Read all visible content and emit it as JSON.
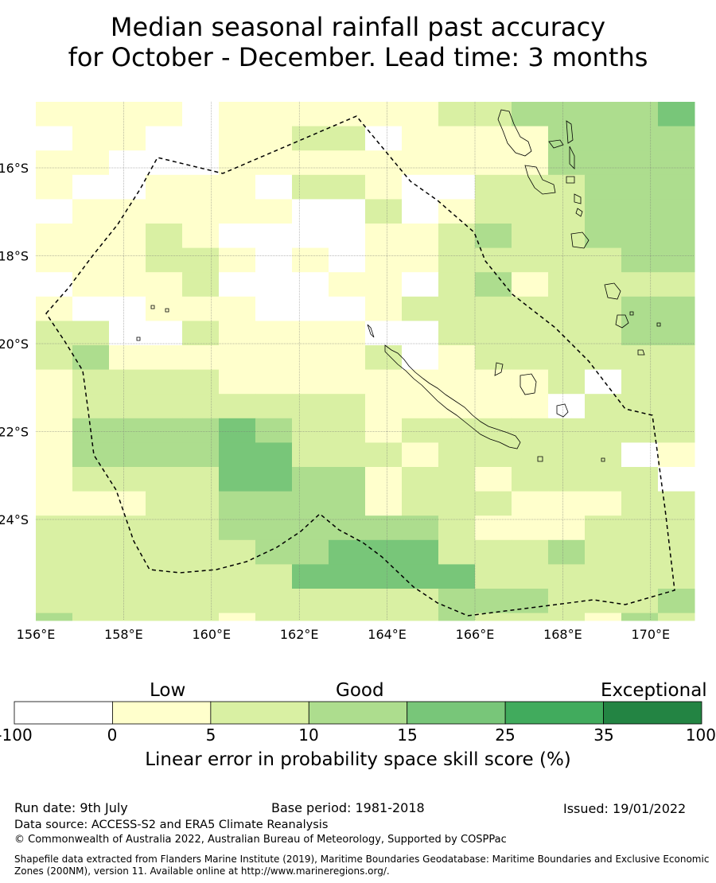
{
  "title_line1": "Median seasonal rainfall past accuracy",
  "title_line2": "for October - December. Lead time: 3 months",
  "map": {
    "lon_range": [
      156,
      171
    ],
    "lat_range": [
      -26.5,
      -14.5
    ],
    "grid_resolution_deg": 0.833,
    "lon_ticks": [
      {
        "value": 156,
        "label": "156°E"
      },
      {
        "value": 158,
        "label": "158°E"
      },
      {
        "value": 160,
        "label": "160°E"
      },
      {
        "value": 162,
        "label": "162°E"
      },
      {
        "value": 164,
        "label": "164°E"
      },
      {
        "value": 166,
        "label": "166°E"
      },
      {
        "value": 168,
        "label": "168°E"
      },
      {
        "value": 170,
        "label": "170°E"
      }
    ],
    "lat_ticks": [
      {
        "value": -16,
        "label": "16°S"
      },
      {
        "value": -18,
        "label": "18°S"
      },
      {
        "value": -20,
        "label": "20°S"
      },
      {
        "value": -22,
        "label": "22°S"
      },
      {
        "value": -24,
        "label": "24°S"
      }
    ],
    "skill_grid_category_rows_north_to_south": [
      "1111011111122333344552",
      "0110011220111133333330",
      "1100011111111133333333",
      "1001110221002223333332",
      "0111111002012223333332",
      "1112100001123223333332",
      "1112210101122222333332",
      "0111200011023122223332",
      "1001110001222222333333",
      "2200211110022222333333",
      "2311111112012222222333",
      "1222211111111120222233",
      "1222222221111102222222",
      "1333343221222222222232",
      "1333344222122222012222",
      "1222244331221222200220",
      "1112233331222111221101",
      "2222233333321112222221",
      "2222223344422232221112",
      "2222222444442222222111",
      "2222222222233322232222",
      "3222212222232221322232",
      "2222322221111112231222",
      "3222222221111111233231",
      "3222212121211111422222"
    ],
    "category_colors": [
      "#ffffff",
      "#ffffcc",
      "#d9f0a3",
      "#addd8e",
      "#78c679",
      "#41ab5d",
      "#238443"
    ]
  },
  "colorbar": {
    "words": [
      "Low",
      "Good",
      "Exceptional"
    ],
    "ticks": [
      "-100",
      "0",
      "5",
      "10",
      "15",
      "25",
      "35",
      "100"
    ],
    "colors": [
      "#ffffff",
      "#ffffcc",
      "#d9f0a3",
      "#addd8e",
      "#78c679",
      "#41ab5d",
      "#238443"
    ],
    "label": "Linear error in probability space skill score (%)"
  },
  "footer": {
    "run_date": "Run date: 9th July",
    "base_period": "Base period: 1981-2018",
    "issued": "Issued: 19/01/2022",
    "data_source": "Data source: ACCESS-S2 and ERA5 Climate Reanalysis",
    "copyright": "© Commonwealth of Australia 2022, Australian Bureau of Meteorology, Supported by COSPPac",
    "shapefile": "Shapefile data extracted from Flanders Marine Institute (2019), Maritime Boundaries Geodatabase: Maritime Boundaries and Exclusive Economic Zones (200NM), version 11. Available online at http://www.marineregions.org/."
  }
}
